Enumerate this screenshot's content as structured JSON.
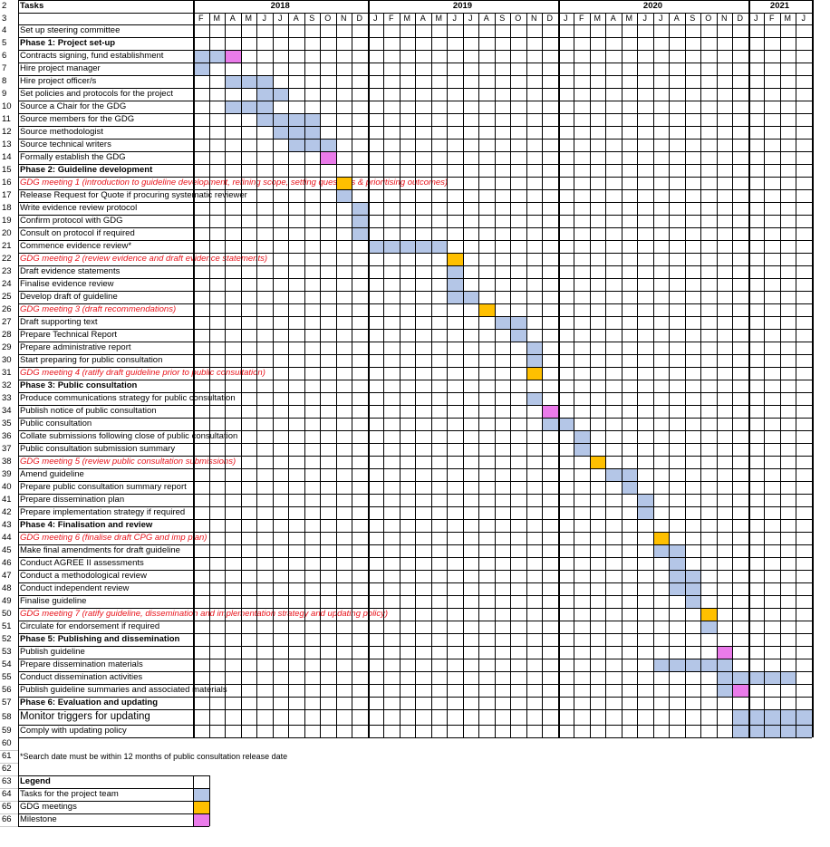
{
  "header": {
    "tasks_label": "Tasks",
    "years": [
      "2018",
      "2019",
      "2020",
      "2021"
    ],
    "months": {
      "2018": [
        "F",
        "M",
        "A",
        "M",
        "J",
        "J",
        "A",
        "S",
        "O",
        "N",
        "D"
      ],
      "2019": [
        "J",
        "F",
        "M",
        "A",
        "M",
        "J",
        "J",
        "A",
        "S",
        "O",
        "N",
        "D"
      ],
      "2020": [
        "J",
        "F",
        "M",
        "A",
        "M",
        "J",
        "J",
        "A",
        "S",
        "O",
        "N",
        "D"
      ],
      "2021": [
        "J",
        "F",
        "M",
        "J"
      ]
    }
  },
  "rows": [
    {
      "n": "2",
      "text": "Tasks",
      "kind": "header"
    },
    {
      "n": "3",
      "text": "",
      "kind": "months"
    },
    {
      "n": "4",
      "text": "Set up steering committee",
      "kind": "task",
      "bars": []
    },
    {
      "n": "5",
      "text": "Phase 1: Project set-up",
      "kind": "phase"
    },
    {
      "n": "6",
      "text": "Contracts signing, fund establishment",
      "kind": "task",
      "bars": [
        [
          0,
          2,
          "blue"
        ],
        [
          2,
          3,
          "pink"
        ]
      ]
    },
    {
      "n": "7",
      "text": "Hire project manager",
      "kind": "task",
      "bars": [
        [
          0,
          1,
          "blue"
        ]
      ]
    },
    {
      "n": "8",
      "text": "Hire project officer/s",
      "kind": "task",
      "bars": [
        [
          2,
          5,
          "blue"
        ]
      ]
    },
    {
      "n": "9",
      "text": "Set policies and protocols for the project",
      "kind": "task",
      "bars": [
        [
          4,
          6,
          "blue"
        ]
      ]
    },
    {
      "n": "10",
      "text": "Source a Chair for the GDG",
      "kind": "task",
      "bars": [
        [
          2,
          5,
          "blue"
        ]
      ]
    },
    {
      "n": "11",
      "text": "Source members for the GDG",
      "kind": "task",
      "bars": [
        [
          4,
          8,
          "blue"
        ]
      ]
    },
    {
      "n": "12",
      "text": "Source methodologist",
      "kind": "task",
      "bars": [
        [
          5,
          8,
          "blue"
        ]
      ]
    },
    {
      "n": "13",
      "text": "Source technical writers",
      "kind": "task",
      "bars": [
        [
          6,
          9,
          "blue"
        ]
      ]
    },
    {
      "n": "14",
      "text": "Formally establish the GDG",
      "kind": "task",
      "bars": [
        [
          8,
          9,
          "pink"
        ]
      ]
    },
    {
      "n": "15",
      "text": "Phase 2: Guideline development",
      "kind": "phase"
    },
    {
      "n": "16",
      "text": "GDG meeting 1 (introduction to guideline development, refining scope, setting questions & prioritising outcomes)",
      "kind": "meeting",
      "bars": [
        [
          9,
          10,
          "orange"
        ]
      ]
    },
    {
      "n": "17",
      "text": "Release Request for Quote if procuring systematic reviewer",
      "kind": "task",
      "bars": [
        [
          9,
          10,
          "blue"
        ]
      ]
    },
    {
      "n": "18",
      "text": "Write evidence review protocol",
      "kind": "task",
      "bars": [
        [
          10,
          11,
          "blue"
        ]
      ]
    },
    {
      "n": "19",
      "text": "Confirm protocol with GDG",
      "kind": "task",
      "bars": [
        [
          10,
          11,
          "blue"
        ]
      ]
    },
    {
      "n": "20",
      "text": "Consult on protocol if required",
      "kind": "task",
      "bars": [
        [
          10,
          11,
          "blue"
        ]
      ]
    },
    {
      "n": "21",
      "text": "Commence evidence review*",
      "kind": "task",
      "bars": [
        [
          11,
          16,
          "blue"
        ]
      ]
    },
    {
      "n": "22",
      "text": "GDG meeting 2 (review evidence and draft evidence statements)",
      "kind": "meeting",
      "bars": [
        [
          16,
          17,
          "orange"
        ]
      ]
    },
    {
      "n": "23",
      "text": "Draft evidence statements",
      "kind": "task",
      "bars": [
        [
          16,
          17,
          "blue"
        ]
      ]
    },
    {
      "n": "24",
      "text": "Finalise evidence review",
      "kind": "task",
      "bars": [
        [
          16,
          17,
          "blue"
        ]
      ]
    },
    {
      "n": "25",
      "text": "Develop draft of guideline",
      "kind": "task",
      "bars": [
        [
          16,
          18,
          "blue"
        ]
      ]
    },
    {
      "n": "26",
      "text": "GDG meeting 3 (draft recommendations)",
      "kind": "meeting",
      "bars": [
        [
          18,
          19,
          "orange"
        ]
      ]
    },
    {
      "n": "27",
      "text": "Draft supporting text",
      "kind": "task",
      "bars": [
        [
          19,
          21,
          "blue"
        ]
      ]
    },
    {
      "n": "28",
      "text": "Prepare Technical Report",
      "kind": "task",
      "bars": [
        [
          20,
          21,
          "blue"
        ]
      ]
    },
    {
      "n": "29",
      "text": "Prepare administrative report",
      "kind": "task",
      "bars": [
        [
          21,
          22,
          "blue"
        ]
      ]
    },
    {
      "n": "30",
      "text": "Start preparing for public consultation",
      "kind": "task",
      "bars": [
        [
          21,
          22,
          "blue"
        ]
      ]
    },
    {
      "n": "31",
      "text": "GDG meeting 4 (ratify draft guideline prior to public consultation)",
      "kind": "meeting",
      "bars": [
        [
          21,
          22,
          "orange"
        ]
      ]
    },
    {
      "n": "32",
      "text": "Phase 3: Public consultation",
      "kind": "phase"
    },
    {
      "n": "33",
      "text": "Produce communications strategy for public consultation",
      "kind": "task",
      "bars": [
        [
          21,
          22,
          "blue"
        ]
      ]
    },
    {
      "n": "34",
      "text": "Publish notice of public consultation",
      "kind": "task",
      "bars": [
        [
          22,
          23,
          "pink"
        ]
      ]
    },
    {
      "n": "35",
      "text": "Public consultation",
      "kind": "task",
      "bars": [
        [
          22,
          24,
          "blue"
        ]
      ]
    },
    {
      "n": "36",
      "text": "Collate submissions following close of public consultation",
      "kind": "task",
      "bars": [
        [
          24,
          25,
          "blue"
        ]
      ]
    },
    {
      "n": "37",
      "text": "Public consultation submission summary",
      "kind": "task",
      "bars": [
        [
          24,
          25,
          "blue"
        ]
      ]
    },
    {
      "n": "38",
      "text": "GDG meeting 5 (review public consultation submissions)",
      "kind": "meeting",
      "bars": [
        [
          25,
          26,
          "orange"
        ]
      ]
    },
    {
      "n": "39",
      "text": "Amend guideline",
      "kind": "task",
      "bars": [
        [
          26,
          28,
          "blue"
        ]
      ]
    },
    {
      "n": "40",
      "text": "Prepare public consultation summary report",
      "kind": "task",
      "bars": [
        [
          27,
          28,
          "blue"
        ]
      ]
    },
    {
      "n": "41",
      "text": "Prepare dissemination plan",
      "kind": "task",
      "bars": [
        [
          28,
          29,
          "blue"
        ]
      ]
    },
    {
      "n": "42",
      "text": "Prepare implementation strategy if required",
      "kind": "task",
      "bars": [
        [
          28,
          29,
          "blue"
        ]
      ]
    },
    {
      "n": "43",
      "text": "Phase 4: Finalisation and review",
      "kind": "phase"
    },
    {
      "n": "44",
      "text": "GDG meeting 6 (finalise draft CPG and imp plan)",
      "kind": "meeting",
      "bars": [
        [
          29,
          30,
          "orange"
        ]
      ]
    },
    {
      "n": "45",
      "text": "Make final amendments for draft guideline",
      "kind": "task",
      "bars": [
        [
          29,
          31,
          "blue"
        ]
      ]
    },
    {
      "n": "46",
      "text": "Conduct AGREE II assessments",
      "kind": "task",
      "bars": [
        [
          30,
          31,
          "blue"
        ]
      ]
    },
    {
      "n": "47",
      "text": "Conduct a methodological review",
      "kind": "task",
      "bars": [
        [
          30,
          32,
          "blue"
        ]
      ]
    },
    {
      "n": "48",
      "text": "Conduct independent review",
      "kind": "task",
      "bars": [
        [
          30,
          32,
          "blue"
        ]
      ]
    },
    {
      "n": "49",
      "text": "Finalise guideline",
      "kind": "task",
      "bars": [
        [
          31,
          32,
          "blue"
        ]
      ]
    },
    {
      "n": "50",
      "text": "GDG meeting 7 (ratify guideline, dissemination and implementation strategy and updating policy)",
      "kind": "meeting",
      "bars": [
        [
          32,
          33,
          "orange"
        ]
      ]
    },
    {
      "n": "51",
      "text": "Circulate for endorsement if required",
      "kind": "task",
      "bars": [
        [
          32,
          33,
          "blue"
        ]
      ]
    },
    {
      "n": "52",
      "text": "Phase 5: Publishing and dissemination",
      "kind": "phase"
    },
    {
      "n": "53",
      "text": "Publish guideline",
      "kind": "task",
      "bars": [
        [
          33,
          34,
          "pink"
        ]
      ]
    },
    {
      "n": "54",
      "text": "Prepare dissemination materials",
      "kind": "task",
      "bars": [
        [
          29,
          34,
          "blue"
        ]
      ]
    },
    {
      "n": "55",
      "text": "Conduct dissemination activities",
      "kind": "task",
      "bars": [
        [
          33,
          38,
          "blue"
        ]
      ]
    },
    {
      "n": "56",
      "text": "Publish guideline summaries and associated materials",
      "kind": "task",
      "bars": [
        [
          33,
          34,
          "blue"
        ],
        [
          34,
          35,
          "pink"
        ]
      ]
    },
    {
      "n": "57",
      "text": "Phase 6: Evaluation and updating",
      "kind": "phase"
    },
    {
      "n": "58",
      "text": "Monitor triggers for updating",
      "kind": "big",
      "bars": [
        [
          34,
          39,
          "blue"
        ]
      ]
    },
    {
      "n": "59",
      "text": "Comply with updating policy",
      "kind": "task",
      "bars": [
        [
          34,
          39,
          "blue"
        ]
      ]
    },
    {
      "n": "60",
      "text": "",
      "kind": "blank"
    },
    {
      "n": "61",
      "text": "*Search date must be within 12 months of public consultation release date",
      "kind": "note"
    },
    {
      "n": "62",
      "text": "",
      "kind": "blank"
    },
    {
      "n": "63",
      "text": "Legend",
      "kind": "legend-title"
    },
    {
      "n": "64",
      "text": "Tasks for the project team",
      "kind": "legend",
      "swatch": "blue"
    },
    {
      "n": "65",
      "text": "GDG meetings",
      "kind": "legend",
      "swatch": "orange"
    },
    {
      "n": "66",
      "text": "Milestone",
      "kind": "legend",
      "swatch": "pink"
    }
  ],
  "colors": {
    "blue": "#b4c6e7",
    "orange": "#ffc000",
    "pink": "#ea7bea",
    "meeting_text": "#e8141c"
  }
}
